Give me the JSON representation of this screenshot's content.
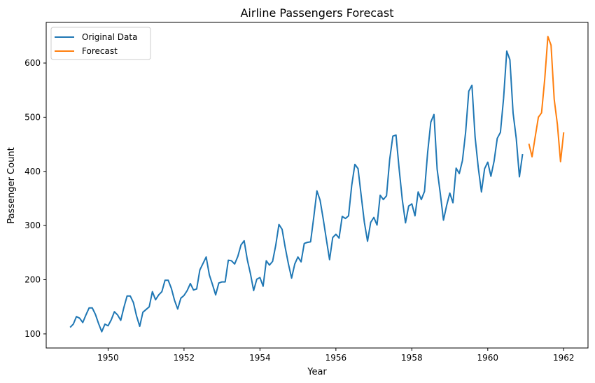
{
  "chart_data": {
    "type": "line",
    "title": "Airline Passengers Forecast",
    "xlabel": "Year",
    "ylabel": "Passenger Count",
    "xlim": [
      1948.37,
      1962.64
    ],
    "ylim": [
      74,
      675
    ],
    "xticks": [
      1950,
      1952,
      1954,
      1956,
      1958,
      1960,
      1962
    ],
    "yticks": [
      100,
      200,
      300,
      400,
      500,
      600
    ],
    "grid": false,
    "legend": "top-left",
    "series": [
      {
        "name": "Original Data",
        "color": "#1f77b4",
        "start": "1949-01",
        "values": [
          112,
          118,
          132,
          129,
          121,
          135,
          148,
          148,
          136,
          119,
          104,
          118,
          115,
          126,
          141,
          135,
          125,
          149,
          170,
          170,
          158,
          133,
          114,
          140,
          145,
          150,
          178,
          163,
          172,
          178,
          199,
          199,
          184,
          162,
          146,
          166,
          171,
          180,
          193,
          181,
          183,
          218,
          230,
          242,
          209,
          191,
          172,
          194,
          196,
          196,
          236,
          235,
          229,
          243,
          264,
          272,
          237,
          211,
          180,
          201,
          204,
          188,
          235,
          227,
          234,
          264,
          302,
          293,
          259,
          229,
          203,
          229,
          242,
          233,
          267,
          269,
          270,
          315,
          364,
          347,
          312,
          274,
          237,
          278,
          284,
          277,
          317,
          313,
          318,
          374,
          413,
          405,
          355,
          306,
          271,
          306,
          315,
          301,
          356,
          348,
          355,
          422,
          465,
          467,
          404,
          347,
          305,
          336,
          340,
          318,
          362,
          348,
          363,
          435,
          491,
          505,
          404,
          359,
          310,
          337,
          360,
          342,
          406,
          396,
          420,
          472,
          548,
          559,
          463,
          407,
          362,
          405,
          417,
          391,
          419,
          461,
          472,
          535,
          622,
          606,
          508,
          461,
          390,
          432
        ]
      },
      {
        "name": "Forecast",
        "color": "#ff7f0e",
        "start": "1961-02",
        "values": [
          451,
          427,
          464,
          500,
          508,
          570,
          649,
          633,
          533,
          487,
          418,
          472
        ]
      }
    ]
  }
}
